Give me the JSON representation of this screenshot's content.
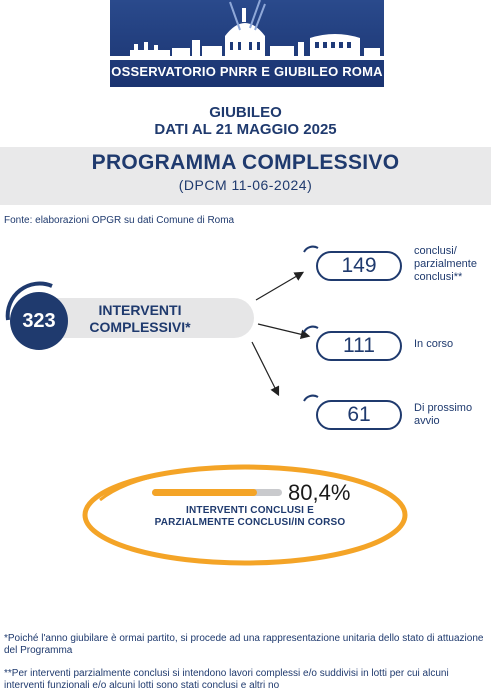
{
  "header": {
    "banner_title": "OSSERVATORIO PNRR E GIUBILEO ROMA",
    "line1": "GIUBILEO",
    "line2": "DATI AL 21 MAGGIO 2025"
  },
  "program": {
    "title": "PROGRAMMA COMPLESSIVO",
    "subtitle": "(DPCM 11-06-2024)"
  },
  "source": "Fonte: elaborazioni OPGR su dati Comune di Roma",
  "total": {
    "value": "323",
    "label": "INTERVENTI COMPLESSIVI*"
  },
  "breakdown": [
    {
      "value": "149",
      "label": "conclusi/ parzialmente conclusi**"
    },
    {
      "value": "111",
      "label": "In corso"
    },
    {
      "value": "61",
      "label": "Di prossimo avvio"
    }
  ],
  "progress": {
    "percent_text": "80,4%",
    "fraction": 0.804,
    "label": "INTERVENTI CONCLUSI E PARZIALMENTE CONCLUSI/IN CORSO",
    "fill_color": "#f4a427",
    "track_color": "#c9cacd"
  },
  "notes": [
    "*Poiché l'anno giubilare è ormai partito, si procede ad una rappresentazione unitaria dello stato di attuazione del Programma",
    "**Per interventi parzialmente conclusi si intendono lavori complessi e/o suddivisi in lotti per cui alcuni interventi funzionali e/o alcuni lotti sono stati conclusi e altri no"
  ],
  "colors": {
    "navy": "#1f3a6e",
    "orange": "#f4a427",
    "grey_band": "#e9e9ea"
  }
}
